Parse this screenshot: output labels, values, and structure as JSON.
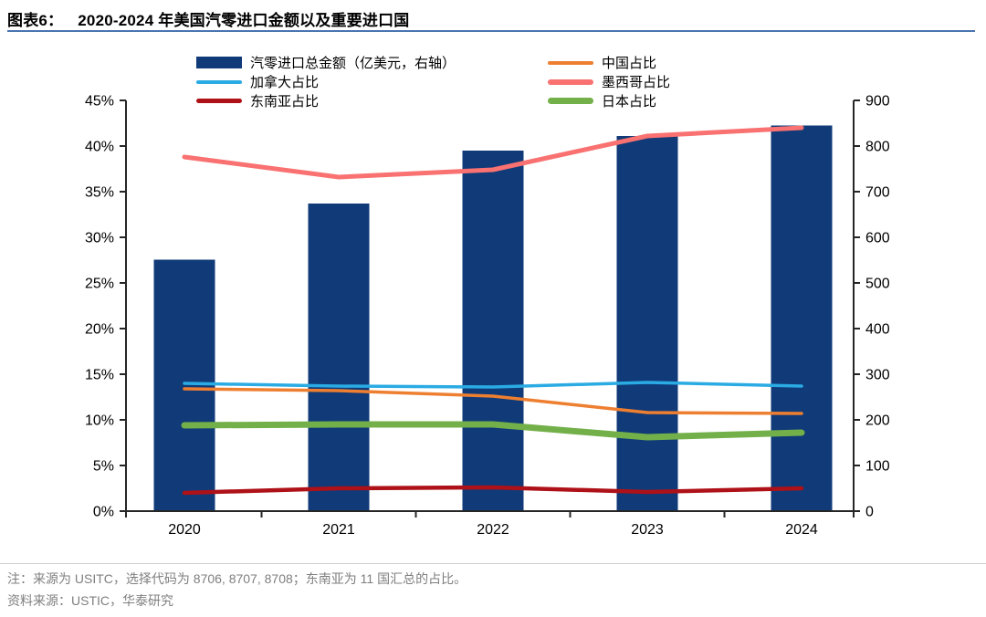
{
  "title": {
    "prefix": "图表6：",
    "text": "2020-2024 年美国汽零进口金额以及重要进口国"
  },
  "legend": {
    "items": [
      {
        "key": "total",
        "label": "汽零进口总金额（亿美元，右轴）",
        "type": "bar",
        "color": "#103a78",
        "thickness": 13
      },
      {
        "key": "china",
        "label": "中国占比",
        "type": "line",
        "color": "#ee7f31",
        "thickness": 4
      },
      {
        "key": "canada",
        "label": "加拿大占比",
        "type": "line",
        "color": "#2aabe3",
        "thickness": 4
      },
      {
        "key": "mexico",
        "label": "墨西哥占比",
        "type": "line",
        "color": "#f97171",
        "thickness": 6
      },
      {
        "key": "seasia",
        "label": "东南亚占比",
        "type": "line",
        "color": "#ae1117",
        "thickness": 5
      },
      {
        "key": "japan",
        "label": "日本占比",
        "type": "line",
        "color": "#73b04a",
        "thickness": 7
      }
    ]
  },
  "chart_data": {
    "type": "bar+line combo",
    "categories": [
      "2020",
      "2021",
      "2022",
      "2023",
      "2024"
    ],
    "bar_series": {
      "key": "total",
      "name": "汽零进口总金额（亿美元，右轴）",
      "axis": "right",
      "color": "#103a78",
      "values": [
        551,
        674,
        790,
        822,
        845
      ]
    },
    "line_series": [
      {
        "key": "china",
        "name": "中国占比",
        "axis": "left",
        "color": "#ee7f31",
        "width": 3.5,
        "values": [
          13.4,
          13.2,
          12.6,
          10.8,
          10.7
        ]
      },
      {
        "key": "canada",
        "name": "加拿大占比",
        "axis": "left",
        "color": "#2aabe3",
        "width": 3.5,
        "values": [
          14.0,
          13.7,
          13.6,
          14.1,
          13.7
        ]
      },
      {
        "key": "mexico",
        "name": "墨西哥占比",
        "axis": "left",
        "color": "#f97171",
        "width": 5,
        "values": [
          38.8,
          36.6,
          37.4,
          41.1,
          42.0
        ]
      },
      {
        "key": "seasia",
        "name": "东南亚占比",
        "axis": "left",
        "color": "#ae1117",
        "width": 4.5,
        "values": [
          2.0,
          2.5,
          2.6,
          2.1,
          2.5
        ]
      },
      {
        "key": "japan",
        "name": "日本占比",
        "axis": "left",
        "color": "#73b04a",
        "width": 7,
        "values": [
          9.4,
          9.5,
          9.5,
          8.1,
          8.6
        ]
      }
    ],
    "left_axis": {
      "unit": "%",
      "min": 0,
      "max": 45,
      "step": 5,
      "tick_labels": [
        "45%",
        "40%",
        "35%",
        "30%",
        "25%",
        "20%",
        "15%",
        "10%",
        "5%",
        "0%"
      ]
    },
    "right_axis": {
      "unit": "亿美元",
      "min": 0,
      "max": 900,
      "step": 100,
      "tick_labels": [
        "900",
        "800",
        "700",
        "600",
        "500",
        "400",
        "300",
        "200",
        "100",
        "0"
      ]
    },
    "grid": false,
    "legend_position": "top"
  },
  "notes": {
    "note": "注：来源为 USITC，选择代码为 8706, 8707, 8708；东南亚为 11 国汇总的占比。",
    "source": "资料来源：USTIC，华泰研究"
  },
  "colors": {
    "bar_navy": "#103a78",
    "title_underline": "#4a74b0",
    "axis": "#262626",
    "note_gray": "#7f7f7f",
    "divider_gray": "#cfcfcf"
  }
}
